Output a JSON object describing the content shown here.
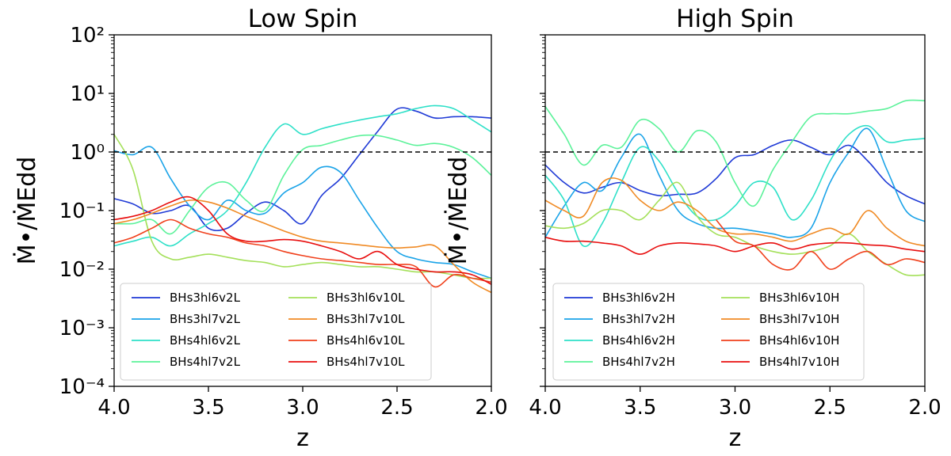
{
  "chart_data": [
    {
      "type": "line",
      "title": "Low Spin",
      "xlabel": "z",
      "ylabel": "Ṁ•/ṀEdd",
      "xlim": [
        4.0,
        2.0
      ],
      "ylim": [
        0.0001,
        100
      ],
      "yscale": "log",
      "xticks": [
        "4.0",
        "3.5",
        "3.0",
        "2.5",
        "2.0"
      ],
      "yticks_show": true,
      "reference_line": {
        "y": 1.0,
        "style": "dashed",
        "color": "#000000"
      },
      "legend": {
        "placement": "lower-left",
        "columns": 2
      },
      "series": [
        {
          "name": "BHs3hl6v2L",
          "color": "#1f3ad6",
          "x": [
            4.0,
            3.9,
            3.8,
            3.7,
            3.6,
            3.5,
            3.4,
            3.3,
            3.2,
            3.1,
            3.0,
            2.9,
            2.8,
            2.7,
            2.6,
            2.5,
            2.4,
            2.3,
            2.2,
            2.1,
            2.0
          ],
          "y": [
            0.16,
            0.13,
            0.09,
            0.1,
            0.12,
            0.05,
            0.05,
            0.09,
            0.14,
            0.1,
            0.06,
            0.18,
            0.35,
            0.9,
            2.3,
            5.4,
            5.0,
            3.8,
            4.0,
            4.0,
            3.8
          ]
        },
        {
          "name": "BHs3hl7v2L",
          "color": "#1aa3e8",
          "x": [
            4.0,
            3.9,
            3.8,
            3.7,
            3.6,
            3.5,
            3.4,
            3.3,
            3.2,
            3.1,
            3.0,
            2.9,
            2.8,
            2.7,
            2.6,
            2.5,
            2.4,
            2.3,
            2.2,
            2.1,
            2.0
          ],
          "y": [
            1.05,
            0.9,
            1.2,
            0.35,
            0.12,
            0.07,
            0.15,
            0.1,
            0.09,
            0.2,
            0.3,
            0.55,
            0.45,
            0.15,
            0.05,
            0.02,
            0.015,
            0.013,
            0.012,
            0.009,
            0.007
          ]
        },
        {
          "name": "BHs4hl6v2L",
          "color": "#2ee0c8",
          "x": [
            4.0,
            3.9,
            3.8,
            3.7,
            3.6,
            3.5,
            3.4,
            3.3,
            3.2,
            3.1,
            3.0,
            2.9,
            2.8,
            2.7,
            2.6,
            2.5,
            2.4,
            2.3,
            2.2,
            2.1,
            2.0
          ],
          "y": [
            0.025,
            0.03,
            0.035,
            0.025,
            0.04,
            0.06,
            0.1,
            0.3,
            1.2,
            3.0,
            2.0,
            2.5,
            3.0,
            3.5,
            4.0,
            4.5,
            5.5,
            6.2,
            5.5,
            3.5,
            2.2
          ]
        },
        {
          "name": "BHs4hl7v2L",
          "color": "#5cf29a",
          "x": [
            4.0,
            3.9,
            3.8,
            3.7,
            3.6,
            3.5,
            3.4,
            3.3,
            3.2,
            3.1,
            3.0,
            2.9,
            2.8,
            2.7,
            2.6,
            2.5,
            2.4,
            2.3,
            2.2,
            2.1,
            2.0
          ],
          "y": [
            0.06,
            0.06,
            0.07,
            0.04,
            0.1,
            0.25,
            0.3,
            0.15,
            0.1,
            0.4,
            1.1,
            1.3,
            1.6,
            1.9,
            1.9,
            1.6,
            1.3,
            1.4,
            1.2,
            0.8,
            0.4
          ]
        },
        {
          "name": "BHs3hl6v10L",
          "color": "#a4e05a",
          "x": [
            4.0,
            3.9,
            3.8,
            3.7,
            3.6,
            3.5,
            3.4,
            3.3,
            3.2,
            3.1,
            3.0,
            2.9,
            2.8,
            2.7,
            2.6,
            2.5,
            2.4,
            2.3,
            2.2,
            2.1,
            2.0
          ],
          "y": [
            2.0,
            0.5,
            0.03,
            0.015,
            0.016,
            0.018,
            0.016,
            0.014,
            0.013,
            0.011,
            0.012,
            0.013,
            0.012,
            0.011,
            0.011,
            0.01,
            0.009,
            0.009,
            0.008,
            0.007,
            0.007
          ]
        },
        {
          "name": "BHs3hl7v10L",
          "color": "#f08a24",
          "x": [
            4.0,
            3.9,
            3.8,
            3.7,
            3.6,
            3.5,
            3.4,
            3.3,
            3.2,
            3.1,
            3.0,
            2.9,
            2.8,
            2.7,
            2.6,
            2.5,
            2.4,
            2.3,
            2.2,
            2.1,
            2.0
          ],
          "y": [
            0.06,
            0.07,
            0.09,
            0.12,
            0.15,
            0.14,
            0.11,
            0.08,
            0.06,
            0.045,
            0.035,
            0.03,
            0.028,
            0.026,
            0.024,
            0.023,
            0.024,
            0.025,
            0.012,
            0.006,
            0.004
          ]
        },
        {
          "name": "BHs4hl6v10L",
          "color": "#f0401c",
          "x": [
            4.0,
            3.9,
            3.8,
            3.7,
            3.6,
            3.5,
            3.4,
            3.3,
            3.2,
            3.1,
            3.0,
            2.9,
            2.8,
            2.7,
            2.6,
            2.5,
            2.4,
            2.3,
            2.2,
            2.1,
            2.0
          ],
          "y": [
            0.028,
            0.035,
            0.05,
            0.07,
            0.05,
            0.04,
            0.035,
            0.028,
            0.025,
            0.02,
            0.017,
            0.015,
            0.014,
            0.013,
            0.012,
            0.012,
            0.011,
            0.005,
            0.008,
            0.007,
            0.006
          ]
        },
        {
          "name": "BHs4hl7v10L",
          "color": "#e80e0e",
          "x": [
            4.0,
            3.9,
            3.8,
            3.7,
            3.6,
            3.5,
            3.4,
            3.3,
            3.2,
            3.1,
            3.0,
            2.9,
            2.8,
            2.7,
            2.6,
            2.5,
            2.4,
            2.3,
            2.2,
            2.1,
            2.0
          ],
          "y": [
            0.07,
            0.08,
            0.1,
            0.14,
            0.17,
            0.1,
            0.04,
            0.03,
            0.03,
            0.032,
            0.03,
            0.025,
            0.02,
            0.015,
            0.02,
            0.012,
            0.01,
            0.009,
            0.009,
            0.008,
            0.0055
          ]
        }
      ]
    },
    {
      "type": "line",
      "title": "High Spin",
      "xlabel": "z",
      "ylabel": "Ṁ•/ṀEdd",
      "xlim": [
        4.0,
        2.0
      ],
      "ylim": [
        0.0001,
        100
      ],
      "yscale": "log",
      "xticks": [
        "4.0",
        "3.5",
        "3.0",
        "2.5",
        "2.0"
      ],
      "yticks_show": false,
      "reference_line": {
        "y": 1.0,
        "style": "dashed",
        "color": "#000000"
      },
      "legend": {
        "placement": "lower-left",
        "columns": 2
      },
      "series": [
        {
          "name": "BHs3hl6v2H",
          "color": "#1f3ad6",
          "x": [
            4.0,
            3.9,
            3.8,
            3.7,
            3.6,
            3.5,
            3.4,
            3.3,
            3.2,
            3.1,
            3.0,
            2.9,
            2.8,
            2.7,
            2.6,
            2.5,
            2.4,
            2.3,
            2.2,
            2.1,
            2.0
          ],
          "y": [
            0.6,
            0.3,
            0.2,
            0.25,
            0.3,
            0.22,
            0.18,
            0.19,
            0.2,
            0.35,
            0.8,
            0.9,
            1.3,
            1.6,
            1.2,
            0.9,
            1.3,
            0.7,
            0.3,
            0.18,
            0.13
          ]
        },
        {
          "name": "BHs3hl7v2H",
          "color": "#1aa3e8",
          "x": [
            4.0,
            3.9,
            3.8,
            3.7,
            3.6,
            3.5,
            3.4,
            3.3,
            3.2,
            3.1,
            3.0,
            2.9,
            2.8,
            2.7,
            2.6,
            2.5,
            2.4,
            2.3,
            2.2,
            2.1,
            2.0
          ],
          "y": [
            0.035,
            0.12,
            0.3,
            0.22,
            0.8,
            2.0,
            0.4,
            0.1,
            0.06,
            0.05,
            0.05,
            0.045,
            0.04,
            0.035,
            0.05,
            0.3,
            1.0,
            2.5,
            0.5,
            0.1,
            0.065
          ]
        },
        {
          "name": "BHs4hl6v2H",
          "color": "#2ee0c8",
          "x": [
            4.0,
            3.9,
            3.8,
            3.7,
            3.6,
            3.5,
            3.4,
            3.3,
            3.2,
            3.1,
            3.0,
            2.9,
            2.8,
            2.7,
            2.6,
            2.5,
            2.4,
            2.3,
            2.2,
            2.1,
            2.0
          ],
          "y": [
            0.4,
            0.15,
            0.025,
            0.06,
            0.3,
            1.2,
            0.7,
            0.2,
            0.08,
            0.07,
            0.12,
            0.3,
            0.25,
            0.07,
            0.15,
            0.7,
            2.0,
            2.8,
            1.5,
            1.6,
            1.7
          ]
        },
        {
          "name": "BHs4hl7v2H",
          "color": "#5cf29a",
          "x": [
            4.0,
            3.9,
            3.8,
            3.7,
            3.6,
            3.5,
            3.4,
            3.3,
            3.2,
            3.1,
            3.0,
            2.9,
            2.8,
            2.7,
            2.6,
            2.5,
            2.4,
            2.3,
            2.2,
            2.1,
            2.0
          ],
          "y": [
            6.0,
            2.0,
            0.6,
            1.3,
            1.2,
            3.5,
            2.5,
            1.0,
            2.3,
            1.5,
            0.3,
            0.12,
            0.5,
            1.5,
            4.0,
            4.5,
            4.5,
            5.0,
            5.5,
            7.5,
            7.5
          ]
        },
        {
          "name": "BHs3hl6v10H",
          "color": "#a4e05a",
          "x": [
            4.0,
            3.9,
            3.8,
            3.7,
            3.6,
            3.5,
            3.4,
            3.3,
            3.2,
            3.1,
            3.0,
            2.9,
            2.8,
            2.7,
            2.6,
            2.5,
            2.4,
            2.3,
            2.2,
            2.1,
            2.0
          ],
          "y": [
            0.055,
            0.05,
            0.06,
            0.1,
            0.1,
            0.07,
            0.15,
            0.3,
            0.08,
            0.04,
            0.035,
            0.025,
            0.02,
            0.018,
            0.02,
            0.025,
            0.04,
            0.02,
            0.012,
            0.008,
            0.008
          ]
        },
        {
          "name": "BHs3hl7v10H",
          "color": "#f08a24",
          "x": [
            4.0,
            3.9,
            3.8,
            3.7,
            3.6,
            3.5,
            3.4,
            3.3,
            3.2,
            3.1,
            3.0,
            2.9,
            2.8,
            2.7,
            2.6,
            2.5,
            2.4,
            2.3,
            2.2,
            2.1,
            2.0
          ],
          "y": [
            0.15,
            0.1,
            0.08,
            0.3,
            0.33,
            0.15,
            0.1,
            0.14,
            0.1,
            0.05,
            0.04,
            0.04,
            0.035,
            0.03,
            0.04,
            0.05,
            0.04,
            0.1,
            0.05,
            0.03,
            0.025
          ]
        },
        {
          "name": "BHs4hl6v10H",
          "color": "#f0401c",
          "x": [
            3.1,
            3.0,
            2.9,
            2.8,
            2.7,
            2.6,
            2.5,
            2.4,
            2.3,
            2.2,
            2.1,
            2.0
          ],
          "y": [
            0.07,
            0.03,
            0.025,
            0.012,
            0.01,
            0.02,
            0.01,
            0.015,
            0.02,
            0.012,
            0.015,
            0.013
          ]
        },
        {
          "name": "BHs4hl7v10H",
          "color": "#e80e0e",
          "x": [
            4.0,
            3.9,
            3.8,
            3.7,
            3.6,
            3.5,
            3.4,
            3.3,
            3.2,
            3.1,
            3.0,
            2.9,
            2.8,
            2.7,
            2.6,
            2.5,
            2.4,
            2.3,
            2.2,
            2.1,
            2.0
          ],
          "y": [
            0.035,
            0.03,
            0.03,
            0.028,
            0.025,
            0.018,
            0.025,
            0.028,
            0.027,
            0.025,
            0.02,
            0.025,
            0.028,
            0.022,
            0.026,
            0.028,
            0.028,
            0.026,
            0.025,
            0.022,
            0.02
          ]
        }
      ]
    }
  ]
}
